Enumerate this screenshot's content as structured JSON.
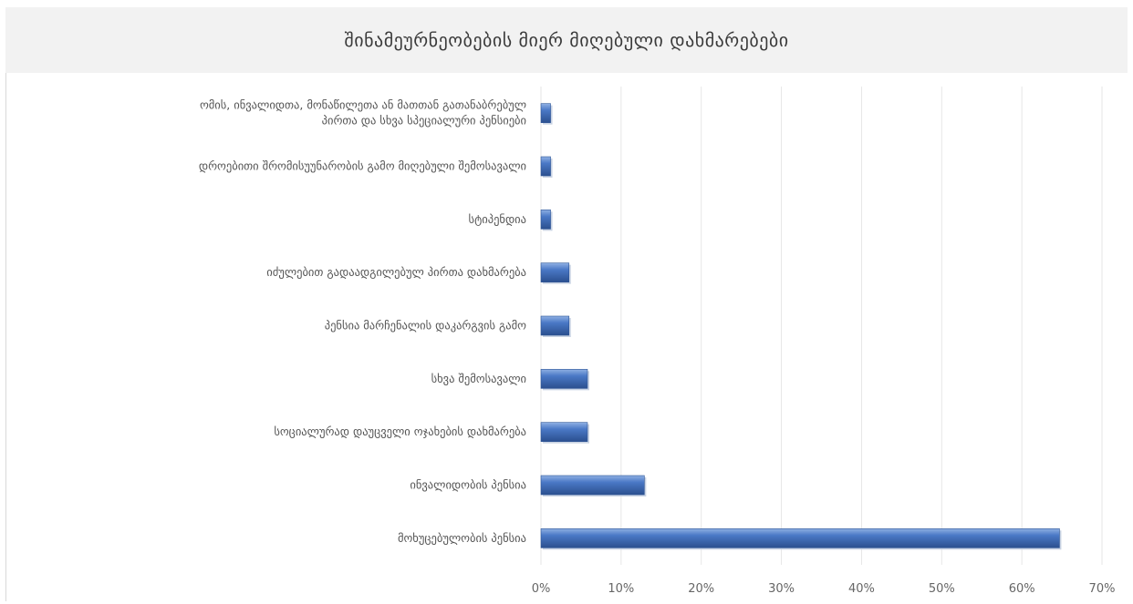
{
  "chart_data": {
    "type": "bar",
    "orientation": "horizontal",
    "title": "შინამეურნეობების მიერ მიღებული დახმარებები",
    "xlabel": "",
    "ylabel": "",
    "xlim": [
      0,
      70
    ],
    "ticks": [
      "0%",
      "10%",
      "20%",
      "30%",
      "40%",
      "50%",
      "60%",
      "70%"
    ],
    "grid": true,
    "legend": "none",
    "categories": [
      [
        "ომის, ინვალიდთა, მონაწილეთა ან მათთან გათანაბრებულ",
        "პირთა და სხვა სპეციალური პენსიები"
      ],
      [
        "დროებითი შრომისუუნარობის გამო მიღებული შემოსავალი"
      ],
      [
        "სტიპენდია"
      ],
      [
        "იძულებით გადაადგილებულ პირთა დახმარება"
      ],
      [
        "პენსია მარჩენალის დაკარგვის გამო"
      ],
      [
        "სხვა შემოსავალი"
      ],
      [
        "სოციალურად დაუცველი ოჯახების დახმარება"
      ],
      [
        "ინვალიდობის პენსია"
      ],
      [
        "მოხუცებულობის პენსია"
      ]
    ],
    "values": [
      1.2,
      1.2,
      1.2,
      3.5,
      3.5,
      5.8,
      5.8,
      12.9,
      64.7
    ],
    "colors": {
      "bar": "#4472c4",
      "bar_dark": "#2e5597",
      "grid": "#e6e6e6"
    }
  }
}
